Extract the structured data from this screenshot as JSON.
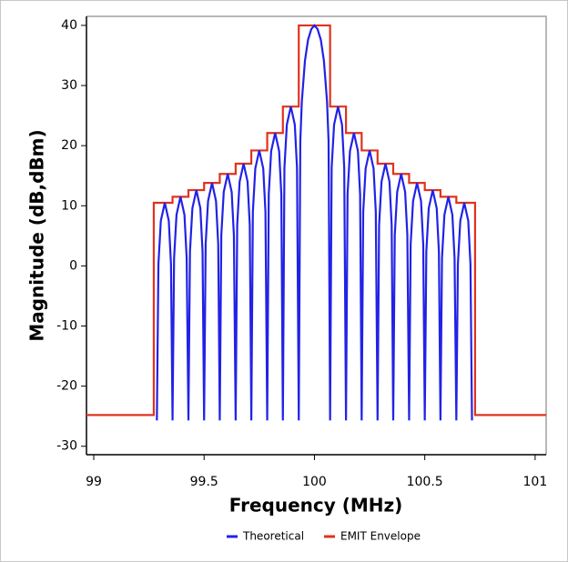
{
  "chart_data": {
    "type": "line",
    "x_label": "Frequency (MHz)",
    "y_label": "Magnitude (dB,dBm)",
    "xlim": [
      98.967,
      101.05
    ],
    "ylim": [
      -31.4,
      41.5
    ],
    "xticks": [
      99,
      99.5,
      100,
      100.5,
      101
    ],
    "yticks": [
      -30,
      -20,
      -10,
      0,
      10,
      20,
      30,
      40
    ],
    "legend": "bottom",
    "series": [
      {
        "name": "Theoretical",
        "color": "#2222e6",
        "x": [
          99.286,
          99.293,
          99.304,
          99.322,
          99.34,
          99.35,
          99.357,
          99.364,
          99.375,
          99.393,
          99.411,
          99.421,
          99.429,
          99.436,
          99.447,
          99.465,
          99.483,
          99.493,
          99.5,
          99.507,
          99.518,
          99.536,
          99.554,
          99.564,
          99.571,
          99.578,
          99.589,
          99.607,
          99.625,
          99.635,
          99.643,
          99.65,
          99.661,
          99.679,
          99.697,
          99.707,
          99.714,
          99.721,
          99.732,
          99.75,
          99.768,
          99.778,
          99.786,
          99.793,
          99.804,
          99.822,
          99.84,
          99.85,
          99.857,
          99.864,
          99.875,
          99.893,
          99.911,
          99.921,
          99.929,
          99.936,
          99.943,
          99.957,
          99.971,
          99.986,
          100,
          100.014,
          100.029,
          100.043,
          100.057,
          100.064,
          100.071,
          100.078,
          100.089,
          100.107,
          100.125,
          100.135,
          100.143,
          100.15,
          100.161,
          100.179,
          100.197,
          100.207,
          100.214,
          100.221,
          100.232,
          100.25,
          100.268,
          100.278,
          100.286,
          100.293,
          100.304,
          100.322,
          100.34,
          100.35,
          100.357,
          100.364,
          100.375,
          100.393,
          100.411,
          100.421,
          100.429,
          100.436,
          100.447,
          100.465,
          100.483,
          100.493,
          100.5,
          100.507,
          100.518,
          100.536,
          100.554,
          100.564,
          100.571,
          100.578,
          100.589,
          100.607,
          100.625,
          100.635,
          100.643,
          100.65,
          100.661,
          100.679,
          100.697,
          100.707,
          100.714
        ],
        "values": [
          -25.7,
          0.3,
          7.5,
          10.5,
          7.5,
          0.3,
          -25.7,
          1.3,
          8.5,
          11.5,
          8.5,
          1.3,
          -25.7,
          2.4,
          9.6,
          12.6,
          9.6,
          2.4,
          -25.7,
          3.6,
          10.8,
          13.8,
          10.8,
          3.6,
          -25.7,
          5.1,
          12.3,
          15.3,
          12.3,
          5.1,
          -25.7,
          6.8,
          14,
          17,
          14,
          6.8,
          -25.7,
          9,
          16.2,
          19.2,
          16.2,
          9,
          -25.7,
          11.9,
          19.1,
          22.1,
          19.1,
          11.9,
          -25.7,
          16.3,
          23.5,
          26.5,
          23.5,
          16.3,
          -25.7,
          20.8,
          27.4,
          34.1,
          37.6,
          39.4,
          40,
          39.4,
          37.6,
          34.1,
          27.4,
          20.8,
          -25.7,
          16.3,
          23.5,
          26.5,
          23.5,
          16.3,
          -25.7,
          11.9,
          19.1,
          22.1,
          19.1,
          11.9,
          -25.7,
          9,
          16.2,
          19.2,
          16.2,
          9,
          -25.7,
          6.8,
          14,
          17,
          14,
          6.8,
          -25.7,
          5.1,
          12.3,
          15.3,
          12.3,
          5.1,
          -25.7,
          3.6,
          10.8,
          13.8,
          10.8,
          3.6,
          -25.7,
          2.4,
          9.6,
          12.6,
          9.6,
          2.4,
          -25.7,
          1.3,
          8.5,
          11.5,
          8.5,
          1.3,
          -25.7,
          0.3,
          7.5,
          10.5,
          7.5,
          0.3,
          -25.7
        ]
      },
      {
        "name": "EMIT Envelope",
        "color": "#e0321e",
        "x": [
          98.967,
          99.272,
          99.272,
          99.357,
          99.357,
          99.429,
          99.429,
          99.5,
          99.5,
          99.571,
          99.571,
          99.643,
          99.643,
          99.714,
          99.714,
          99.786,
          99.786,
          99.857,
          99.857,
          99.929,
          99.929,
          100.071,
          100.071,
          100.143,
          100.143,
          100.214,
          100.214,
          100.286,
          100.286,
          100.357,
          100.357,
          100.429,
          100.429,
          100.5,
          100.5,
          100.571,
          100.571,
          100.643,
          100.643,
          100.728,
          100.728,
          101.05
        ],
        "values": [
          -24.8,
          -24.8,
          10.5,
          10.5,
          11.5,
          11.5,
          12.6,
          12.6,
          13.8,
          13.8,
          15.3,
          15.3,
          17,
          17,
          19.2,
          19.2,
          22.1,
          22.1,
          26.5,
          26.5,
          40,
          40,
          26.5,
          26.5,
          22.1,
          22.1,
          19.2,
          19.2,
          17,
          17,
          15.3,
          15.3,
          13.8,
          13.8,
          12.6,
          12.6,
          11.5,
          11.5,
          10.5,
          10.5,
          -24.8,
          -24.8
        ]
      }
    ]
  }
}
